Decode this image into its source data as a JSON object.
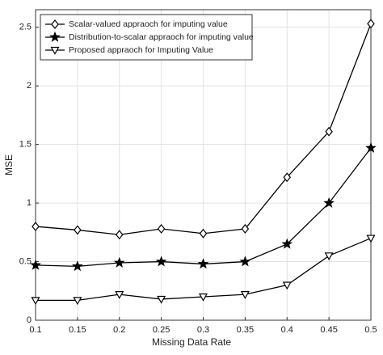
{
  "chart_data": {
    "type": "line",
    "x": [
      0.1,
      0.15,
      0.2,
      0.25,
      0.3,
      0.35,
      0.4,
      0.45,
      0.5
    ],
    "series": [
      {
        "name": "Scalar-valued appraoch for imputing value",
        "color": "#000000",
        "marker": "diamond",
        "values": [
          0.8,
          0.77,
          0.73,
          0.78,
          0.74,
          0.78,
          1.22,
          1.61,
          2.53
        ]
      },
      {
        "name": "Distribution-to-scalar appraoch for imputing value",
        "color": "#000000",
        "marker": "star",
        "values": [
          0.47,
          0.46,
          0.49,
          0.5,
          0.48,
          0.5,
          0.65,
          1.0,
          1.47
        ]
      },
      {
        "name": "Proposed  appraoch for Imputing Value",
        "color": "#000000",
        "marker": "triangle-down",
        "values": [
          0.17,
          0.17,
          0.22,
          0.18,
          0.2,
          0.22,
          0.3,
          0.55,
          0.7
        ]
      }
    ],
    "xlabel": "Missing Data Rate",
    "ylabel": "MSE",
    "xlim": [
      0.1,
      0.5
    ],
    "xticks": [
      0.1,
      0.15,
      0.2,
      0.25,
      0.3,
      0.35,
      0.4,
      0.45,
      0.5
    ],
    "ylim": [
      0,
      2.65
    ],
    "yticks": [
      0,
      0.5,
      1,
      1.5,
      2,
      2.5
    ],
    "grid": true,
    "legend": "top-left"
  }
}
